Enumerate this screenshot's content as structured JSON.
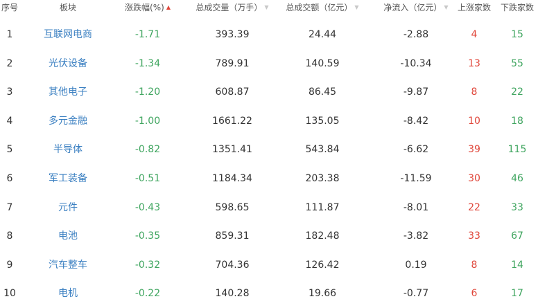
{
  "colors": {
    "up": "#e0463a",
    "down": "#3fa55f",
    "link": "#3a7fc1",
    "sort_active": "#e0463a",
    "sort_inactive": "#c8c8c8"
  },
  "headers": {
    "index": "序号",
    "sector": "板块",
    "change": "涨跌幅(%)",
    "volume": "总成交量（万手）",
    "amount": "总成交额（亿元）",
    "inflow": "净流入（亿元）",
    "up_count": "上涨家数",
    "down_count": "下跌家数"
  },
  "sort_icons": {
    "change": "▲",
    "volume": "▼",
    "amount": "▼",
    "inflow": "▼"
  },
  "rows": [
    {
      "index": "1",
      "sector": "互联网电商",
      "change": "-1.71",
      "volume": "393.39",
      "amount": "24.44",
      "inflow": "-2.88",
      "up": "4",
      "down": "15"
    },
    {
      "index": "2",
      "sector": "光伏设备",
      "change": "-1.34",
      "volume": "789.91",
      "amount": "140.59",
      "inflow": "-10.34",
      "up": "13",
      "down": "55"
    },
    {
      "index": "3",
      "sector": "其他电子",
      "change": "-1.20",
      "volume": "608.87",
      "amount": "86.45",
      "inflow": "-9.87",
      "up": "8",
      "down": "22"
    },
    {
      "index": "4",
      "sector": "多元金融",
      "change": "-1.00",
      "volume": "1661.22",
      "amount": "135.05",
      "inflow": "-8.42",
      "up": "10",
      "down": "18"
    },
    {
      "index": "5",
      "sector": "半导体",
      "change": "-0.82",
      "volume": "1351.41",
      "amount": "543.84",
      "inflow": "-6.62",
      "up": "39",
      "down": "115"
    },
    {
      "index": "6",
      "sector": "军工装备",
      "change": "-0.51",
      "volume": "1184.34",
      "amount": "203.38",
      "inflow": "-11.59",
      "up": "30",
      "down": "46"
    },
    {
      "index": "7",
      "sector": "元件",
      "change": "-0.43",
      "volume": "598.65",
      "amount": "111.87",
      "inflow": "-8.01",
      "up": "22",
      "down": "33"
    },
    {
      "index": "8",
      "sector": "电池",
      "change": "-0.35",
      "volume": "859.31",
      "amount": "182.48",
      "inflow": "-3.82",
      "up": "33",
      "down": "67"
    },
    {
      "index": "9",
      "sector": "汽车整车",
      "change": "-0.32",
      "volume": "704.36",
      "amount": "126.42",
      "inflow": "0.19",
      "up": "8",
      "down": "14"
    },
    {
      "index": "10",
      "sector": "电机",
      "change": "-0.22",
      "volume": "140.28",
      "amount": "19.66",
      "inflow": "-0.77",
      "up": "6",
      "down": "17"
    }
  ]
}
